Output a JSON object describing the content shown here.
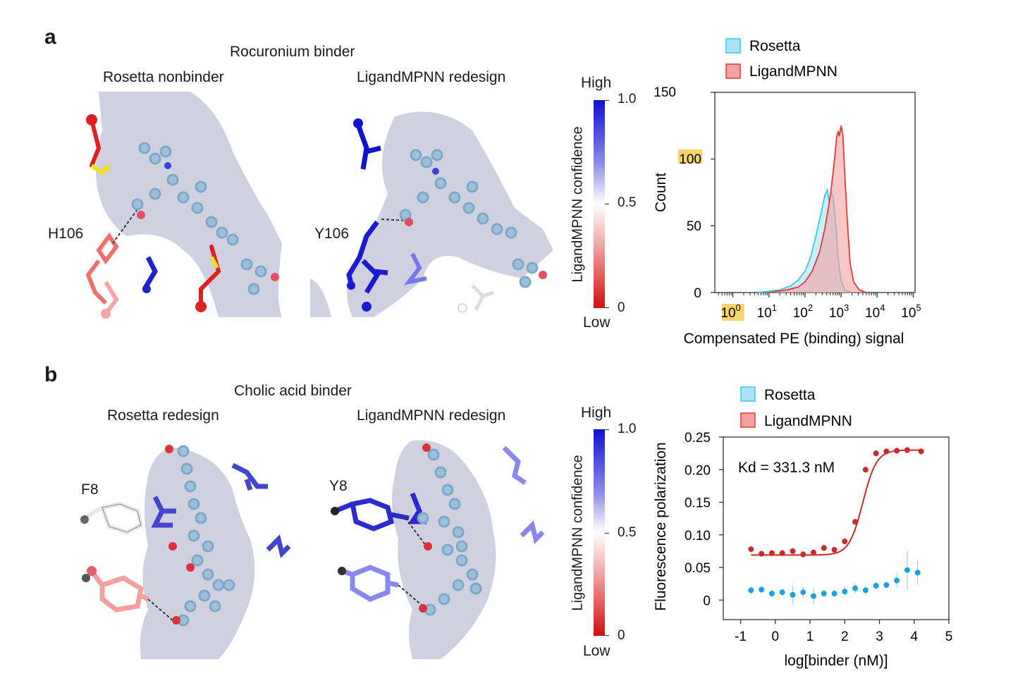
{
  "panel_a": {
    "letter": "a",
    "title": "Rocuronium binder",
    "left_caption": "Rosetta nonbinder",
    "right_caption": "LigandMPNN redesign",
    "left_residue": "H106",
    "right_residue": "Y106",
    "colorbar": {
      "high": "High",
      "low": "Low",
      "label": "LigandMPNN confidence",
      "ticks": [
        "1.0",
        "0.5",
        "0"
      ]
    }
  },
  "panel_b": {
    "letter": "b",
    "title": "Cholic acid binder",
    "left_caption": "Rosetta redesign",
    "right_caption": "LigandMPNN redesign",
    "left_residue": "F8",
    "right_residue": "Y8",
    "colorbar": {
      "high": "High",
      "low": "Low",
      "label": "LigandMPNN confidence",
      "ticks": [
        "1.0",
        "0.5",
        "0"
      ]
    }
  },
  "colors": {
    "rosetta_fill": "#a8e4f5",
    "rosetta_line": "#3cc8e6",
    "ligandmpnn_fill": "#f5a0a0",
    "ligandmpnn_line": "#e03a3a",
    "fp_rosetta": "#1ba1e2",
    "fp_ligandmpnn": "#cc2a2a",
    "highlight": "#f7d56a",
    "surface": "#c7c9dc"
  },
  "chart_data": [
    {
      "type": "area",
      "legend": [
        "Rosetta",
        "LigandMPNN"
      ],
      "xlabel": "Compensated PE (binding) signal",
      "ylabel": "Count",
      "xscale": "log",
      "xlim_log10": [
        -0.5,
        5.05
      ],
      "ylim": [
        0,
        150
      ],
      "yticks": [
        "0",
        "50",
        "100",
        "150"
      ],
      "xtick_base": "10",
      "xtick_exponents": [
        "0",
        "1",
        "2",
        "3",
        "4",
        "5"
      ],
      "highlighted_labels": [
        "100",
        "10^0"
      ],
      "series": [
        {
          "name": "Rosetta",
          "log10_x": [
            0.7,
            1.0,
            1.3,
            1.6,
            1.8,
            2.0,
            2.15,
            2.3,
            2.45,
            2.55,
            2.62,
            2.67,
            2.72,
            2.78,
            2.85,
            2.92,
            3.0,
            3.1,
            3.3
          ],
          "counts": [
            0,
            1,
            2,
            5,
            9,
            16,
            26,
            42,
            60,
            73,
            77,
            68,
            75,
            72,
            52,
            25,
            9,
            2,
            0
          ]
        },
        {
          "name": "LigandMPNN",
          "log10_x": [
            1.0,
            1.5,
            1.8,
            2.0,
            2.2,
            2.4,
            2.55,
            2.7,
            2.8,
            2.88,
            2.92,
            2.95,
            3.0,
            3.05,
            3.1,
            3.17,
            3.25,
            3.35,
            3.5,
            3.7
          ],
          "counts": [
            0,
            2,
            4,
            8,
            16,
            30,
            48,
            72,
            95,
            117,
            121,
            117,
            125,
            118,
            90,
            55,
            22,
            8,
            2,
            0
          ]
        }
      ]
    },
    {
      "type": "scatter",
      "legend": [
        "Rosetta",
        "LigandMPNN"
      ],
      "annotation": "Kd = 331.3 nM",
      "xlabel": "log[binder (nM)]",
      "ylabel": "Fluorescence polarization",
      "xlim": [
        -1.5,
        5
      ],
      "ylim": [
        -0.03,
        0.25
      ],
      "xticks": [
        "-1",
        "0",
        "1",
        "2",
        "3",
        "4",
        "5"
      ],
      "yticks": [
        "0",
        "0.05",
        "0.10",
        "0.15",
        "0.20",
        "0.25"
      ],
      "series": [
        {
          "name": "LigandMPNN",
          "x": [
            -0.7,
            -0.4,
            -0.1,
            0.2,
            0.5,
            0.8,
            1.1,
            1.4,
            1.7,
            2.0,
            2.3,
            2.6,
            2.9,
            3.2,
            3.5,
            3.8,
            4.2
          ],
          "y": [
            0.078,
            0.071,
            0.072,
            0.072,
            0.075,
            0.07,
            0.073,
            0.08,
            0.077,
            0.09,
            0.12,
            0.2,
            0.225,
            0.228,
            0.229,
            0.23,
            0.228
          ],
          "fit_kd_log10": 2.52,
          "fit_bottom": 0.069,
          "fit_top": 0.23
        },
        {
          "name": "Rosetta",
          "x": [
            -0.7,
            -0.4,
            -0.1,
            0.2,
            0.5,
            0.8,
            1.1,
            1.4,
            1.7,
            2.0,
            2.3,
            2.6,
            2.9,
            3.2,
            3.5,
            3.8,
            4.1
          ],
          "y": [
            0.015,
            0.016,
            0.01,
            0.012,
            0.008,
            0.012,
            0.006,
            0.01,
            0.01,
            0.013,
            0.018,
            0.015,
            0.022,
            0.023,
            0.03,
            0.046,
            0.042
          ],
          "err": [
            0.007,
            0.006,
            0.005,
            0.006,
            0.015,
            0.01,
            0.012,
            0.005,
            0.006,
            0.007,
            0.008,
            0.007,
            0.006,
            0.005,
            0.012,
            0.03,
            0.018
          ]
        }
      ]
    }
  ]
}
